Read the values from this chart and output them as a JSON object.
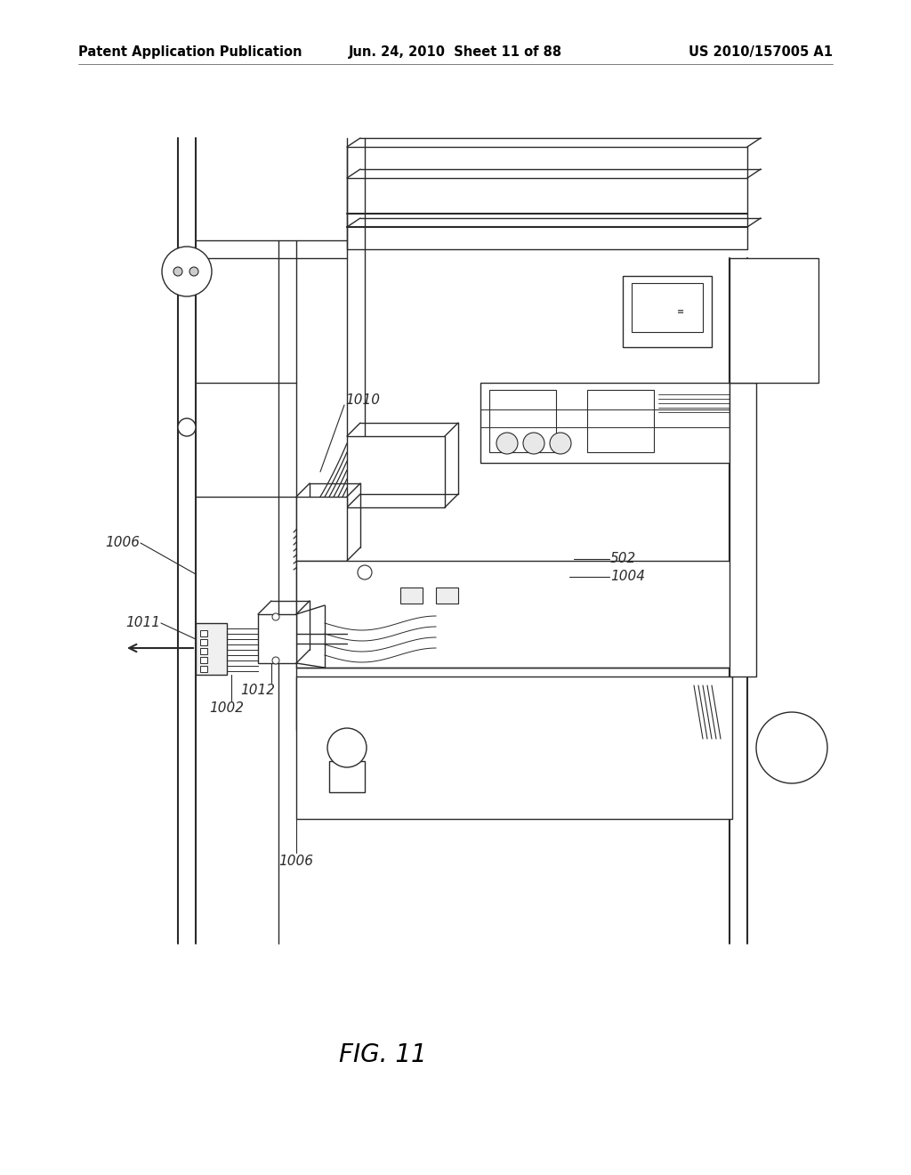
{
  "background_color": "#ffffff",
  "header_left": "Patent Application Publication",
  "header_center": "Jun. 24, 2010  Sheet 11 of 88",
  "header_right": "US 2010/157005 A1",
  "figure_label": "FIG. 11",
  "line_color": "#2a2a2a",
  "text_color": "#2a2a2a",
  "header_fontsize": 10.5,
  "label_fontsize": 11,
  "fig_label_fontsize": 20
}
